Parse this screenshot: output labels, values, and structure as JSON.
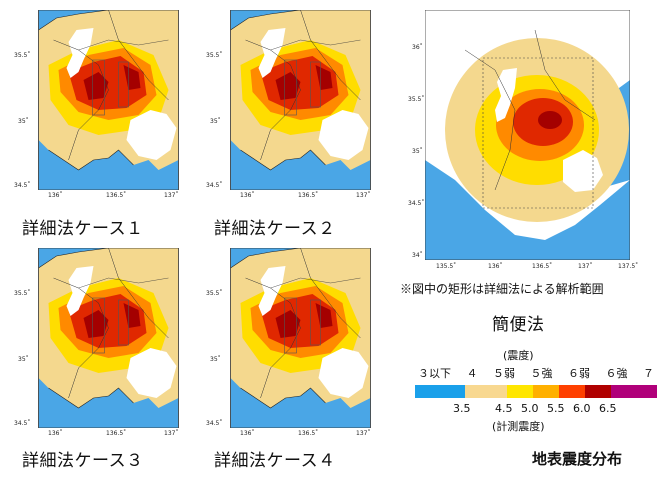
{
  "panels": {
    "case1": {
      "caption": "詳細法ケース１",
      "y_ticks": [
        "35.5˚",
        "35˚",
        "34.5˚"
      ],
      "x_ticks": [
        "136˚",
        "136.5˚",
        "137˚"
      ]
    },
    "case2": {
      "caption": "詳細法ケース２",
      "y_ticks": [
        "35.5˚",
        "35˚",
        "34.5˚"
      ],
      "x_ticks": [
        "136˚",
        "136.5˚",
        "137˚"
      ]
    },
    "case3": {
      "caption": "詳細法ケース３",
      "y_ticks": [
        "35.5˚",
        "35˚",
        "34.5˚"
      ],
      "x_ticks": [
        "136˚",
        "136.5˚",
        "137˚"
      ]
    },
    "case4": {
      "caption": "詳細法ケース４",
      "y_ticks": [
        "35.5˚",
        "35˚",
        "34.5˚"
      ],
      "x_ticks": [
        "136˚",
        "136.5˚",
        "137˚"
      ]
    },
    "simple": {
      "caption": "簡便法",
      "note": "※図中の矩形は詳細法による解析範囲",
      "y_ticks": [
        "36˚",
        "35.5˚",
        "35˚",
        "34.5˚",
        "34˚"
      ],
      "x_ticks": [
        "135.5˚",
        "136˚",
        "136.5˚",
        "137˚",
        "137.5˚"
      ]
    }
  },
  "legend": {
    "top_title": "(震度)",
    "intensity_labels": [
      "３以下",
      "４",
      "５弱",
      "５強",
      "６弱",
      "６強",
      "７"
    ],
    "bottom_title": "(計測震度)",
    "ticks": [
      "3.5",
      "4.5",
      "5.0",
      "5.5",
      "6.0",
      "6.5"
    ],
    "colors": [
      "#1aa0ea",
      "#f8d890",
      "#ffe600",
      "#ffb000",
      "#ff4000",
      "#b00000",
      "#b0007a"
    ]
  },
  "title": "地表震度分布",
  "colors": {
    "sea": "#4aa6e6",
    "land_low": "#f4d88e",
    "lake": "#ffffff",
    "yellow": "#ffdd00",
    "orange": "#ff8a00",
    "red": "#e02800",
    "darkred": "#a40000"
  }
}
